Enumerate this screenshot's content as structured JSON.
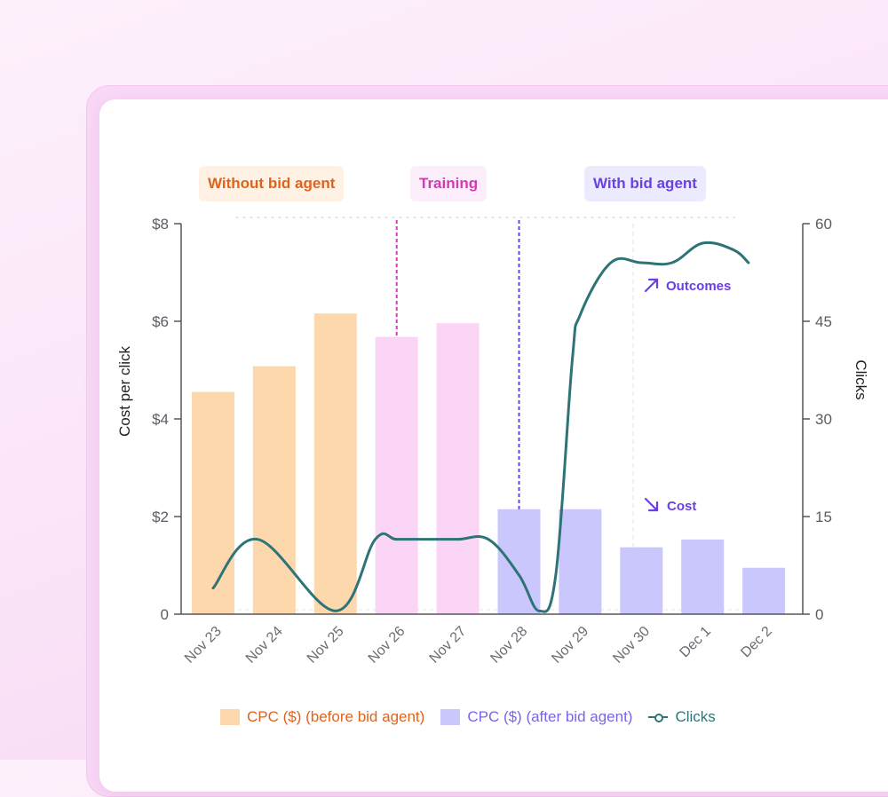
{
  "phases": [
    {
      "label": "Without bid agent",
      "color": "#e0631a",
      "bg": "#fff1e4"
    },
    {
      "label": "Training",
      "color": "#d13cb4",
      "bg": "#fdeefb"
    },
    {
      "label": "With bid agent",
      "color": "#6a40e6",
      "bg": "#ecebfd"
    }
  ],
  "annotations": {
    "outcomes": {
      "label": "Outcomes",
      "icon": "arrow-up-right-icon",
      "color": "#6a40e6"
    },
    "cost": {
      "label": "Cost",
      "icon": "arrow-down-right-icon",
      "color": "#6a40e6"
    }
  },
  "chart_data": {
    "type": "bar",
    "categories": [
      "Nov 23",
      "Nov 24",
      "Nov 25",
      "Nov 26",
      "Nov 27",
      "Nov 28",
      "Nov 29",
      "Nov 30",
      "Dec 1",
      "Dec 2"
    ],
    "series": [
      {
        "name": "CPC ($) (before bid agent)",
        "type": "bar",
        "axis": "left",
        "color": "#fdd8ad",
        "text_color": "#e0631a",
        "values": [
          4.55,
          5.08,
          6.16,
          null,
          null,
          null,
          null,
          null,
          null,
          null
        ]
      },
      {
        "name": "Training",
        "type": "bar",
        "axis": "left",
        "color": "#fad5f6",
        "values": [
          null,
          null,
          null,
          5.68,
          5.96,
          null,
          null,
          null,
          null,
          null
        ]
      },
      {
        "name": "CPC ($) (after bid agent)",
        "type": "bar",
        "axis": "left",
        "color": "#cac7fc",
        "text_color": "#7b64e6",
        "values": [
          null,
          null,
          null,
          null,
          null,
          2.15,
          2.15,
          1.37,
          1.53,
          0.95
        ]
      },
      {
        "name": "Clicks",
        "type": "line",
        "axis": "right",
        "color": "#2e7376",
        "text_color": "#2e7376",
        "x": [
          0,
          0.73,
          2.0,
          2.65,
          3.0,
          3.5,
          4.0,
          4.5,
          5.0,
          5.33,
          5.6,
          5.87,
          6.0,
          6.5,
          7.0,
          7.5,
          8.0,
          8.5,
          8.75
        ],
        "values": [
          4,
          11.5,
          0.5,
          11.5,
          11.5,
          11.5,
          11.5,
          11.5,
          6,
          0.5,
          6,
          39,
          46,
          54,
          54,
          54,
          57,
          56,
          54
        ]
      }
    ],
    "y_left": {
      "label": "Cost per click",
      "ticks": [
        "0",
        "$2",
        "$4",
        "$6",
        "$8"
      ],
      "values": [
        0,
        2,
        4,
        6,
        8
      ],
      "ylim": [
        0,
        8
      ]
    },
    "y_right": {
      "label": "Clicks",
      "ticks": [
        "0",
        "15",
        "30",
        "45",
        "60"
      ],
      "values": [
        0,
        15,
        30,
        45,
        60
      ],
      "ylim": [
        0,
        60
      ]
    },
    "grid": false,
    "legend_position": "bottom"
  }
}
